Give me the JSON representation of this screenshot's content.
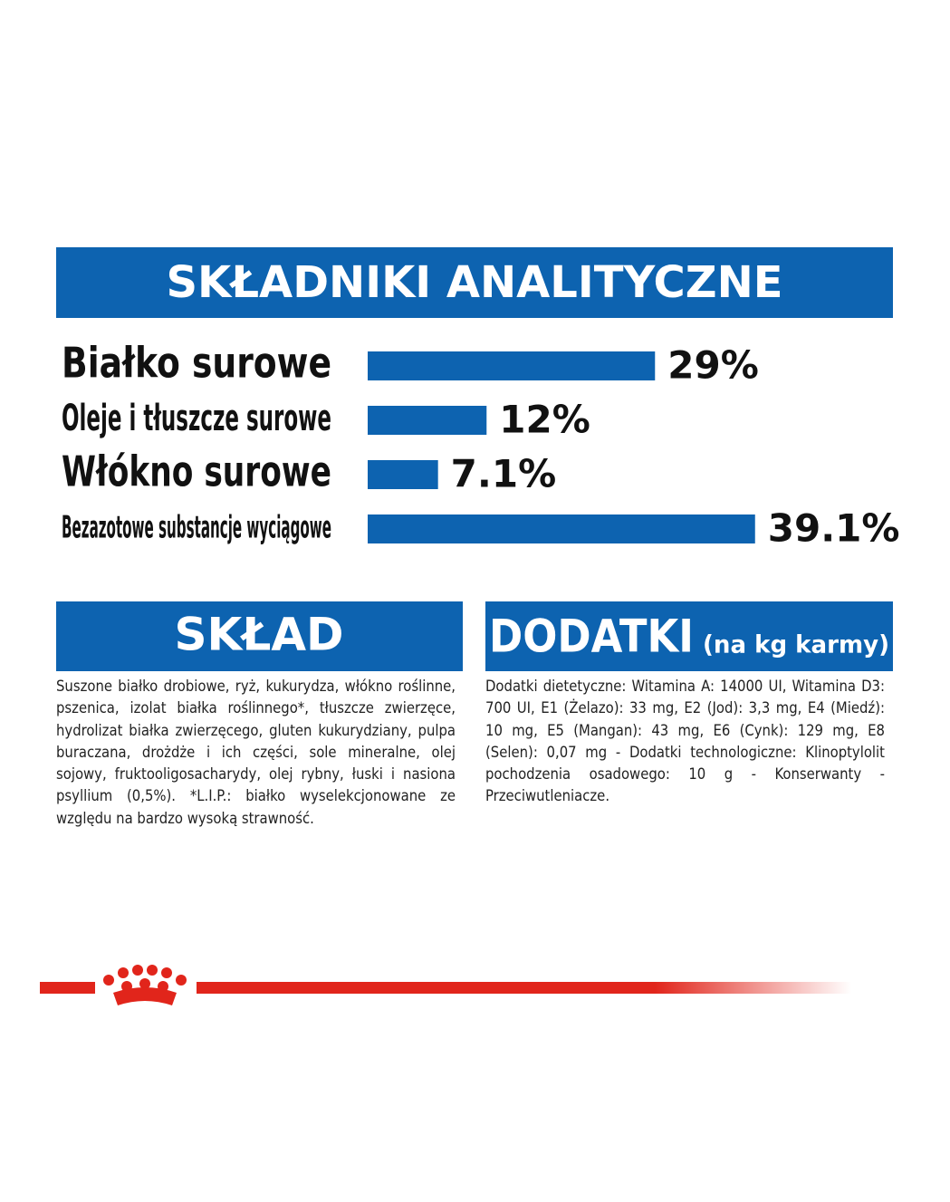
{
  "chart_data": {
    "type": "bar",
    "title": "SKŁADNIKI ANALITYCZNE",
    "categories": [
      "Białko surowe",
      "Oleje i tłuszcze surowe",
      "Włókno surowe",
      "Bezazotowe substancje wyciągowe"
    ],
    "values": [
      29,
      12,
      7.1,
      39.1
    ],
    "value_labels": [
      "29%",
      "12%",
      "7.1%",
      "39.1%"
    ],
    "color": "#0d63b0"
  },
  "composition": {
    "title": "SKŁAD",
    "text": "Suszone białko drobiowe, ryż, kukurydza, włókno roślinne, pszenica, izolat białka roślinnego*, tłuszcze zwierzęce, hydrolizat białka zwierzęcego, gluten kukurydziany, pulpa buraczana, drożdże i ich części, sole mineralne, olej sojowy, fruktooligosacharydy, olej rybny, łuski i nasiona psyllium (0,5%). *L.I.P.: białko wyselekcjonowane ze względu na bardzo wysoką strawność."
  },
  "additives": {
    "title": "DODATKI",
    "subtitle": "(na kg karmy)",
    "text": "Dodatki dietetyczne: Witamina A: 14000 UI, Witamina D3: 700 UI, E1 (Żelazo): 33 mg, E2 (Jod): 3,3 mg, E4 (Miedź): 10 mg, E5 (Mangan): 43 mg, E6 (Cynk): 129 mg, E8 (Selen): 0,07 mg - Dodatki technologiczne: Klinoptylolit pochodzenia osadowego: 10 g - Konserwanty - Przeciwutleniacze."
  }
}
